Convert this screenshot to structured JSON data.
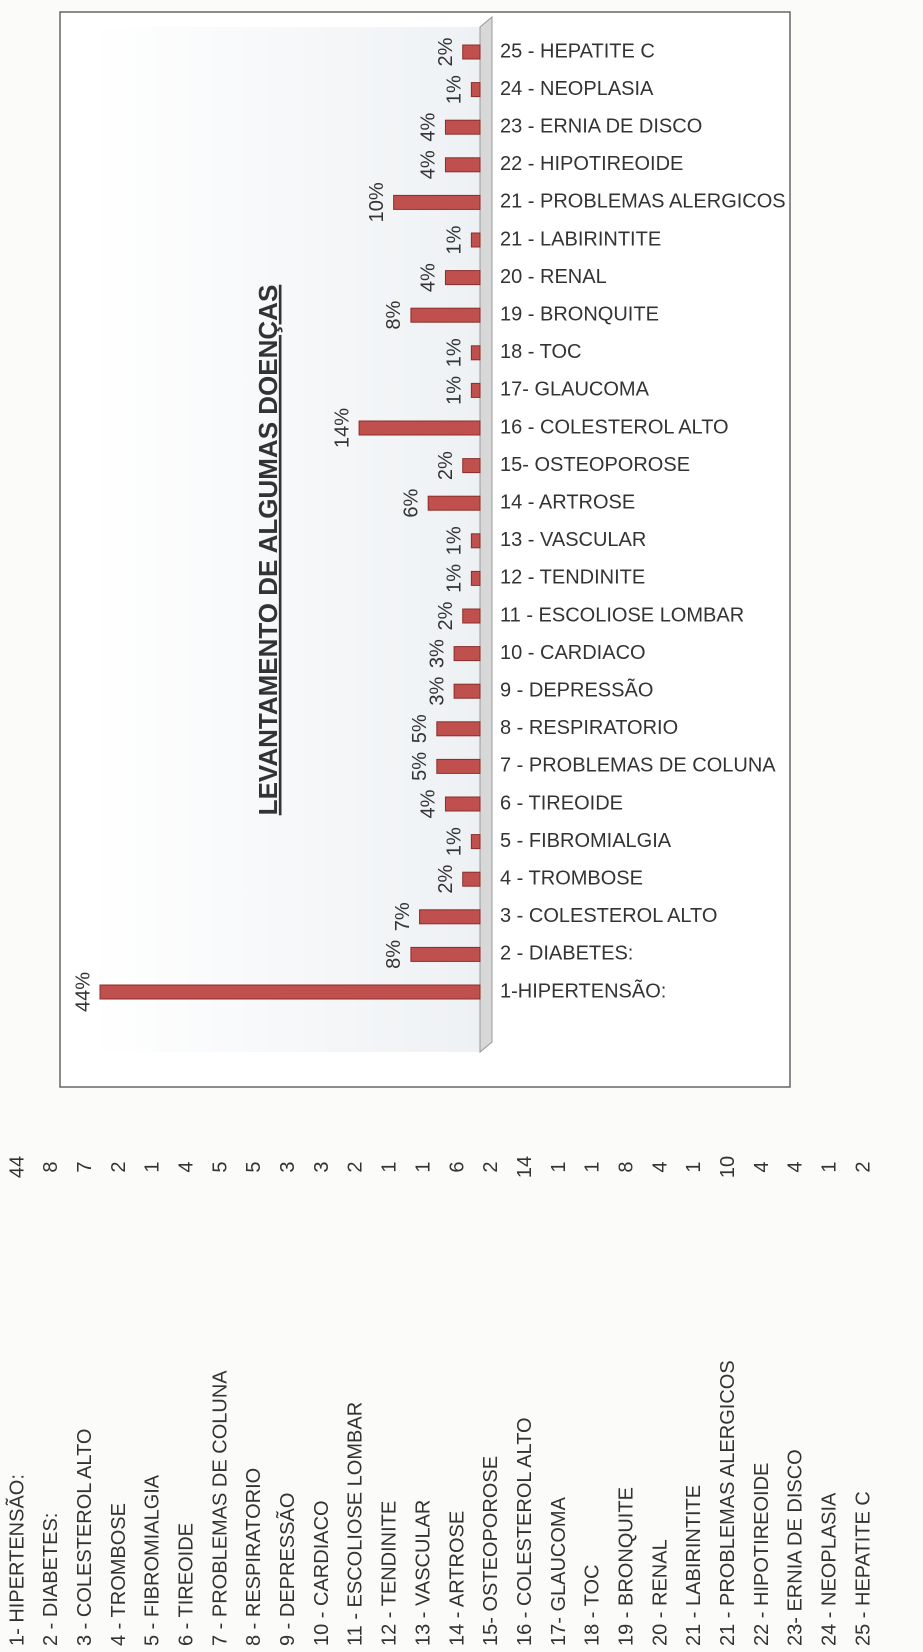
{
  "table": {
    "rows": [
      [
        "1- HIPERTENSÃO:",
        "44"
      ],
      [
        "2 - DIABETES:",
        "8"
      ],
      [
        "3 - COLESTEROL ALTO",
        "7"
      ],
      [
        "4 - TROMBOSE",
        "2"
      ],
      [
        "5 - FIBROMIALGIA",
        "1"
      ],
      [
        "6 - TIREOIDE",
        "4"
      ],
      [
        "7 - PROBLEMAS DE COLUNA",
        "5"
      ],
      [
        "8 - RESPIRATORIO",
        "5"
      ],
      [
        "9 - DEPRESSÃO",
        "3"
      ],
      [
        "10 - CARDIACO",
        "3"
      ],
      [
        "11 - ESCOLIOSE LOMBAR",
        "2"
      ],
      [
        "12 - TENDINITE",
        "1"
      ],
      [
        "13 - VASCULAR",
        "1"
      ],
      [
        "14 - ARTROSE",
        "6"
      ],
      [
        "15- OSTEOPOROSE",
        "2"
      ],
      [
        "16 - COLESTEROL ALTO",
        "14"
      ],
      [
        "17- GLAUCOMA",
        "1"
      ],
      [
        "18 - TOC",
        "1"
      ],
      [
        "19 - BRONQUITE",
        "8"
      ],
      [
        "20 - RENAL",
        "4"
      ],
      [
        "21 - LABIRINTITE",
        "1"
      ],
      [
        "21 - PROBLEMAS ALERGICOS",
        "10"
      ],
      [
        "22 - HIPOTIREOIDE",
        "4"
      ],
      [
        "23- ERNIA DE DISCO",
        "4"
      ],
      [
        "24 - NEOPLASIA",
        "1"
      ],
      [
        "25 - HEPATITE C",
        "2"
      ]
    ]
  },
  "chart_data": {
    "type": "bar",
    "title": "LEVANTAMENTO DE ALGUMAS DOENÇAS",
    "color": "#c0504d",
    "categories": [
      "1-HIPERTENSÃO:",
      "2 - DIABETES:",
      "3 - COLESTEROL ALTO",
      "4 - TROMBOSE",
      "5 - FIBROMIALGIA",
      "6 - TIREOIDE",
      "7 - PROBLEMAS DE COLUNA",
      "8 - RESPIRATORIO",
      "9 - DEPRESSÃO",
      "10 - CARDIACO",
      "11 - ESCOLIOSE LOMBAR",
      "12 - TENDINITE",
      "13 - VASCULAR",
      "14 - ARTROSE",
      "15- OSTEOPOROSE",
      "16 - COLESTEROL ALTO",
      "17- GLAUCOMA",
      "18 - TOC",
      "19 - BRONQUITE",
      "20 - RENAL",
      "21 - LABIRINTITE",
      "21 - PROBLEMAS ALERGICOS",
      "22 - HIPOTIREOIDE",
      "23 - ERNIA DE DISCO",
      "24 - NEOPLASIA",
      "25 - HEPATITE C"
    ],
    "values": [
      44,
      8,
      7,
      2,
      1,
      4,
      5,
      5,
      3,
      3,
      2,
      1,
      1,
      6,
      2,
      14,
      1,
      1,
      8,
      4,
      1,
      10,
      4,
      4,
      1,
      2
    ],
    "value_labels": [
      "44%",
      "8%",
      "7%",
      "2%",
      "1%",
      "4%",
      "5%",
      "5%",
      "3%",
      "3%",
      "2%",
      "1%",
      "1%",
      "6%",
      "2%",
      "14%",
      "1%",
      "1%",
      "8%",
      "4%",
      "1%",
      "10%",
      "4%",
      "4%",
      "1%",
      "2%"
    ]
  }
}
